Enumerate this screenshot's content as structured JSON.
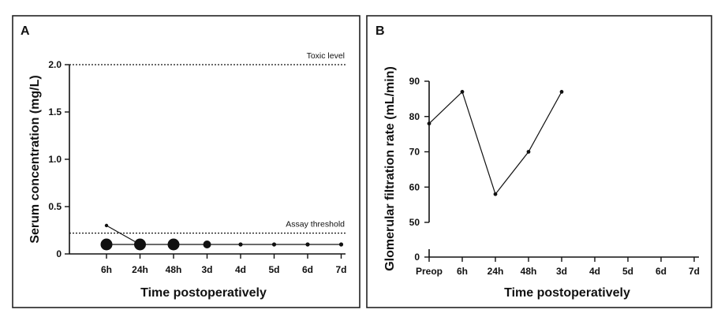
{
  "chart_data": [
    {
      "panel": "A",
      "type": "scatter",
      "xlabel": "Time postoperatively",
      "ylabel": "Serum concentration (mg/L)",
      "categories": [
        "6h",
        "24h",
        "48h",
        "3d",
        "4d",
        "5d",
        "6d",
        "7d"
      ],
      "yticks": [
        "0",
        "0.5",
        "1.0",
        "1.5",
        "2.0"
      ],
      "ylim": [
        0,
        2.0
      ],
      "series": [
        {
          "name": "Serum concentration",
          "points": [
            {
              "x": "6h",
              "y": 0.1,
              "size": "large"
            },
            {
              "x": "24h",
              "y": 0.1,
              "size": "large"
            },
            {
              "x": "48h",
              "y": 0.1,
              "size": "large"
            },
            {
              "x": "3d",
              "y": 0.1,
              "size": "medium"
            },
            {
              "x": "4d",
              "y": 0.1,
              "size": "small"
            },
            {
              "x": "5d",
              "y": 0.1,
              "size": "small"
            },
            {
              "x": "6d",
              "y": 0.1,
              "size": "small"
            },
            {
              "x": "7d",
              "y": 0.1,
              "size": "small"
            }
          ],
          "extra_points": [
            {
              "x": "6h",
              "y": 0.3,
              "size": "tiny"
            }
          ]
        }
      ],
      "reference_lines": [
        {
          "label": "Toxic level",
          "y": 2.0
        },
        {
          "label": "Assay threshold",
          "y": 0.22
        }
      ]
    },
    {
      "panel": "B",
      "type": "line",
      "xlabel": "Time postoperatively",
      "ylabel": "Glomerular filtration rate (mL/min)",
      "categories": [
        "Preop",
        "6h",
        "24h",
        "48h",
        "3d",
        "4d",
        "5d",
        "6d",
        "7d"
      ],
      "yticks": [
        "0",
        "50",
        "60",
        "70",
        "80",
        "90"
      ],
      "ylim": [
        0,
        90
      ],
      "axis_break": [
        0,
        50
      ],
      "series": [
        {
          "name": "GFR",
          "x": [
            "Preop",
            "6h",
            "24h",
            "48h",
            "3d"
          ],
          "y": [
            78,
            87,
            58,
            70,
            87
          ]
        }
      ]
    }
  ]
}
